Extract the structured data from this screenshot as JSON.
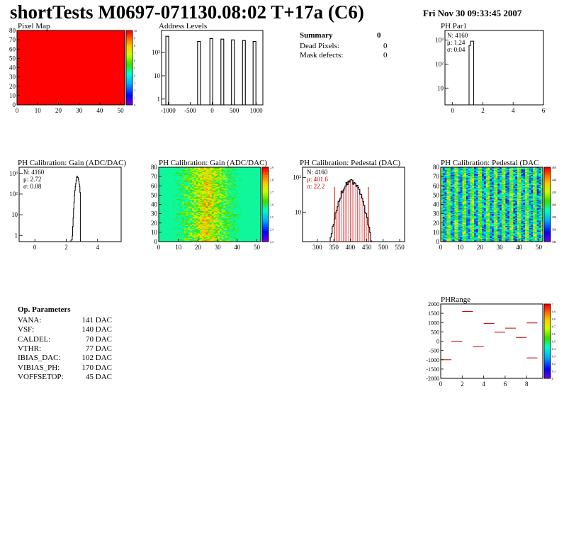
{
  "header": {
    "title": "shortTests M0697-071130.08:02 T+17a (C6)",
    "date": "Fri Nov 30 09:33:45 2007"
  },
  "summary": {
    "title": "Summary",
    "count": "0",
    "rows": [
      {
        "label": "Dead Pixels:",
        "value": "0"
      },
      {
        "label": "Mask defects:",
        "value": "0"
      }
    ]
  },
  "op_params": {
    "title": "Op. Parameters",
    "rows": [
      {
        "name": "VANA:",
        "value": "141 DAC"
      },
      {
        "name": "VSF:",
        "value": "140 DAC"
      },
      {
        "name": "CALDEL:",
        "value": "70 DAC"
      },
      {
        "name": "VTHR:",
        "value": "77 DAC"
      },
      {
        "name": "IBIAS_DAC:",
        "value": "102 DAC"
      },
      {
        "name": "VIBIAS_PH:",
        "value": "170 DAC"
      },
      {
        "name": "VOFFSETOP:",
        "value": "45 DAC"
      }
    ]
  },
  "colors": {
    "data": "#000000",
    "fit": "#cc0000",
    "fill_red": "#ff0000"
  },
  "chart_data": [
    {
      "id": "pixel_map",
      "type": "heatmap",
      "title": "Pixel Map",
      "xlim": [
        0,
        52
      ],
      "ylim": [
        0,
        80
      ],
      "x_ticks": [
        "0",
        "10",
        "20",
        "30",
        "40",
        "50"
      ],
      "y_ticks": [
        "0",
        "10",
        "20",
        "30",
        "40",
        "50",
        "60",
        "70",
        "80"
      ],
      "z_ticks": [
        "0",
        "1",
        "2",
        "3",
        "4",
        "5",
        "6",
        "7",
        "8",
        "9",
        "10"
      ],
      "uniform_value": 10
    },
    {
      "id": "address_levels",
      "type": "bar",
      "title": "Address Levels",
      "log_y": true,
      "xlim": [
        -1150,
        1150
      ],
      "x_ticks": [
        "-1000",
        "-500",
        "0",
        "500",
        "1000"
      ],
      "y_ticks": [
        "1",
        "10",
        "10²"
      ],
      "peaks": [
        {
          "x": -1020,
          "y": 500
        },
        {
          "x": -300,
          "y": 300
        },
        {
          "x": -20,
          "y": 400
        },
        {
          "x": 230,
          "y": 380
        },
        {
          "x": 470,
          "y": 350
        },
        {
          "x": 720,
          "y": 330
        },
        {
          "x": 960,
          "y": 300
        }
      ]
    },
    {
      "id": "ph_par1",
      "type": "bar",
      "title": "PH Par1",
      "log_y": true,
      "xlim": [
        -0.5,
        6
      ],
      "x_ticks": [
        "0",
        "2",
        "4",
        "6"
      ],
      "y_ticks": [
        "10",
        "10²",
        "10³"
      ],
      "stats": {
        "n": "N: 4160",
        "mean": "μ: 1.24",
        "sigma": "σ: 0.04"
      },
      "peak": {
        "center": 1.24,
        "width": 0.3,
        "height": 900
      }
    },
    {
      "id": "ph_gain_hist",
      "type": "bar",
      "title": "PH Calibration: Gain (ADC/DAC)",
      "log_y": true,
      "xlim": [
        -1,
        5.5
      ],
      "x_ticks": [
        "0",
        "2",
        "4"
      ],
      "y_ticks": [
        "1",
        "10",
        "10²",
        "10³"
      ],
      "stats": {
        "n": "N: 4160",
        "mean": "μ: 2.72",
        "sigma": "σ: 0.08"
      },
      "peak": {
        "center": 2.72,
        "width": 0.6,
        "height": 700
      }
    },
    {
      "id": "ph_gain_map",
      "type": "heatmap",
      "title": "PH Calibration: Gain (ADC/DAC)",
      "xlim": [
        0,
        52
      ],
      "ylim": [
        0,
        80
      ],
      "x_ticks": [
        "0",
        "10",
        "20",
        "30",
        "40",
        "50"
      ],
      "y_ticks": [
        "0",
        "10",
        "20",
        "30",
        "40",
        "50",
        "60",
        "70",
        "80"
      ],
      "z_ticks": [
        "2.3",
        "2.4",
        "2.5",
        "2.6",
        "2.7",
        "2.8",
        "2.9"
      ]
    },
    {
      "id": "ph_pedestal_hist",
      "type": "bar",
      "title": "PH Calibration: Pedestal (DAC)",
      "log_y": true,
      "xlim": [
        255,
        565
      ],
      "x_ticks": [
        "300",
        "350",
        "400",
        "450",
        "500",
        "550"
      ],
      "y_ticks": [
        "10",
        "10²"
      ],
      "stats": {
        "n": "N: 4160",
        "mean": "μ: 401.6",
        "sigma": "σ: 22.2"
      },
      "peak": {
        "center": 401.6,
        "sigma": 22.2,
        "height": 80
      },
      "fit_lines": [
        352,
        455
      ]
    },
    {
      "id": "ph_pedestal_map",
      "type": "heatmap",
      "title": "PH Calibration: Pedestal (DAC",
      "xlim": [
        0,
        52
      ],
      "ylim": [
        0,
        80
      ],
      "x_ticks": [
        "0",
        "10",
        "20",
        "30",
        "40",
        "50"
      ],
      "y_ticks": [
        "0",
        "10",
        "20",
        "30",
        "40",
        "50",
        "60",
        "70",
        "80"
      ],
      "z_ticks": [
        "340",
        "360",
        "380",
        "400",
        "420",
        "440",
        "460"
      ]
    },
    {
      "id": "ph_range",
      "type": "scatter",
      "title": "PHRange",
      "xlim": [
        0,
        9.5
      ],
      "ylim": [
        -2000,
        2000
      ],
      "x_ticks": [
        "0",
        "2",
        "4",
        "6",
        "8"
      ],
      "y_ticks": [
        "-2000",
        "-1500",
        "-1000",
        "-500",
        "0",
        "500",
        "1000",
        "1500",
        "2000"
      ],
      "z_ticks": [
        "0",
        "0.1",
        "0.2",
        "0.3",
        "0.4",
        "0.5",
        "0.6",
        "0.7",
        "0.8",
        "0.9",
        "1"
      ],
      "segments": [
        {
          "x": 0,
          "y": -1000
        },
        {
          "x": 1,
          "y": 0
        },
        {
          "x": 2,
          "y": 1600
        },
        {
          "x": 3,
          "y": -300
        },
        {
          "x": 4,
          "y": 950
        },
        {
          "x": 5,
          "y": 480
        },
        {
          "x": 6,
          "y": 700
        },
        {
          "x": 7,
          "y": 200
        },
        {
          "x": 8,
          "y": 980
        },
        {
          "x": 8,
          "y": -900
        }
      ]
    }
  ]
}
